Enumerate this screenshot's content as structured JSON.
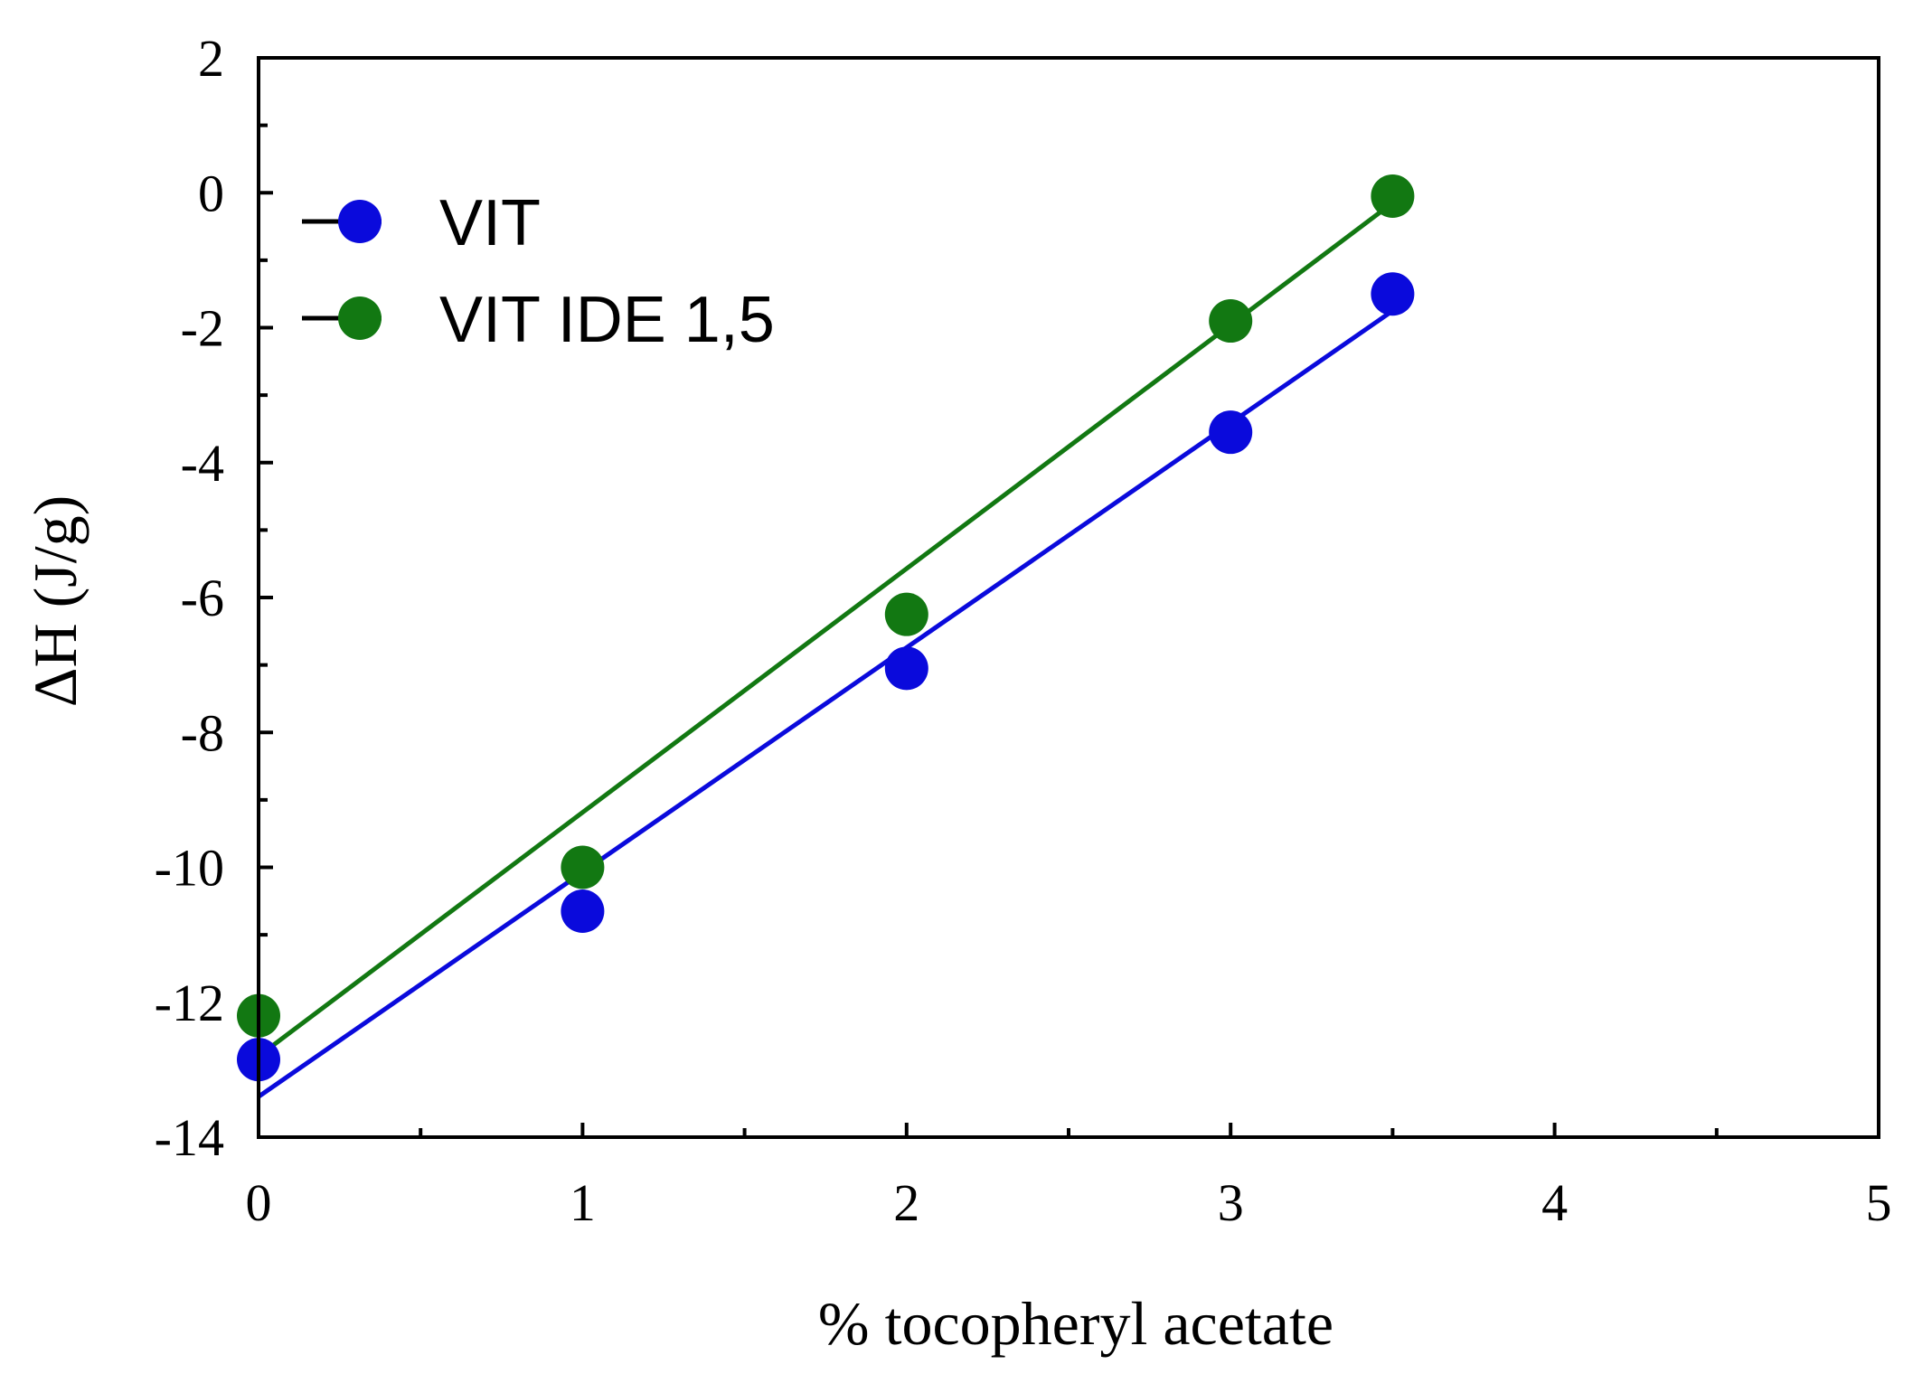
{
  "chart_data": {
    "type": "scatter",
    "title": "",
    "xlabel": "% tocopheryl acetate",
    "ylabel": "ΔH (J/g)",
    "xlim": [
      0,
      5
    ],
    "ylim": [
      -14,
      2
    ],
    "x_major_ticks": [
      0,
      1,
      2,
      3,
      4,
      5
    ],
    "x_minor_ticks": [
      0.5,
      1.5,
      2.5,
      3.5,
      4.5
    ],
    "y_major_ticks": [
      -14,
      -12,
      -10,
      -8,
      -6,
      -4,
      -2,
      0,
      2
    ],
    "y_minor_ticks": [
      -13,
      -11,
      -9,
      -7,
      -5,
      -3,
      -1,
      1
    ],
    "x_tick_labels": [
      "0",
      "1",
      "2",
      "3",
      "4",
      "5"
    ],
    "y_tick_labels": [
      "-14",
      "-12",
      "-10",
      "-8",
      "-6",
      "-4",
      "-2",
      "0",
      "2"
    ],
    "grid": false,
    "legend_position": "top-left",
    "series": [
      {
        "name": "VIT",
        "color": "#0a0adc",
        "x": [
          0,
          1,
          2,
          3,
          3.5
        ],
        "values": [
          -12.85,
          -10.65,
          -7.05,
          -3.55,
          -1.5
        ],
        "fit_line": {
          "x": [
            0,
            3.5
          ],
          "y": [
            -13.4,
            -1.75
          ]
        }
      },
      {
        "name": "VIT IDE 1,5",
        "color": "#127812",
        "x": [
          0,
          1,
          2,
          3,
          3.5
        ],
        "values": [
          -12.2,
          -10.0,
          -6.25,
          -1.9,
          -0.05
        ],
        "fit_line": {
          "x": [
            0,
            3.5
          ],
          "y": [
            -12.8,
            -0.15
          ]
        }
      }
    ]
  }
}
